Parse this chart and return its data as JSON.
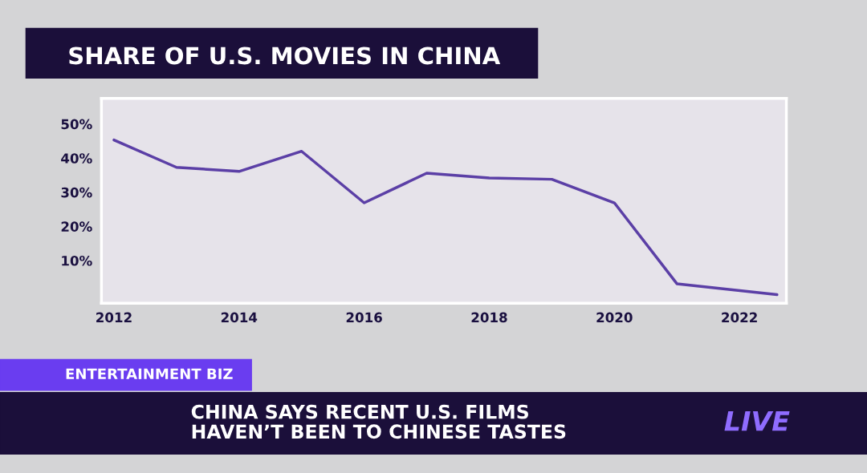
{
  "chart_data": {
    "type": "line",
    "title": "SHARE OF U.S. MOVIES IN CHINA",
    "x": [
      2012,
      2013,
      2014,
      2015,
      2016,
      2017,
      2018,
      2019,
      2020,
      2021,
      2022.6
    ],
    "series": [
      {
        "color": "#5b3fa6",
        "values": [
          45.3,
          37.3,
          36.1,
          42.0,
          26.9,
          35.6,
          34.2,
          33.8,
          26.9,
          3.2,
          0
        ]
      }
    ],
    "xlim": [
      2011.8,
      2022.75
    ],
    "xticks": [
      2012,
      2014,
      2016,
      2018,
      2020,
      2022
    ],
    "ylim": [
      -2.5,
      57.5
    ],
    "yticks": [
      {
        "value": 10,
        "label": "10%"
      },
      {
        "value": 20,
        "label": "20%"
      },
      {
        "value": 30,
        "label": "30%"
      },
      {
        "value": 40,
        "label": "40%"
      },
      {
        "value": 50,
        "label": "50%"
      }
    ],
    "grid": false,
    "legend": false,
    "marker": "none",
    "line_style": "solid",
    "annotations": [
      "ENTERTAINMENT BIZ",
      "CHINA SAYS RECENT U.S. FILMS\nHAVEN’T BEEN TO CHINESE TASTES",
      "LIVE"
    ]
  }
}
